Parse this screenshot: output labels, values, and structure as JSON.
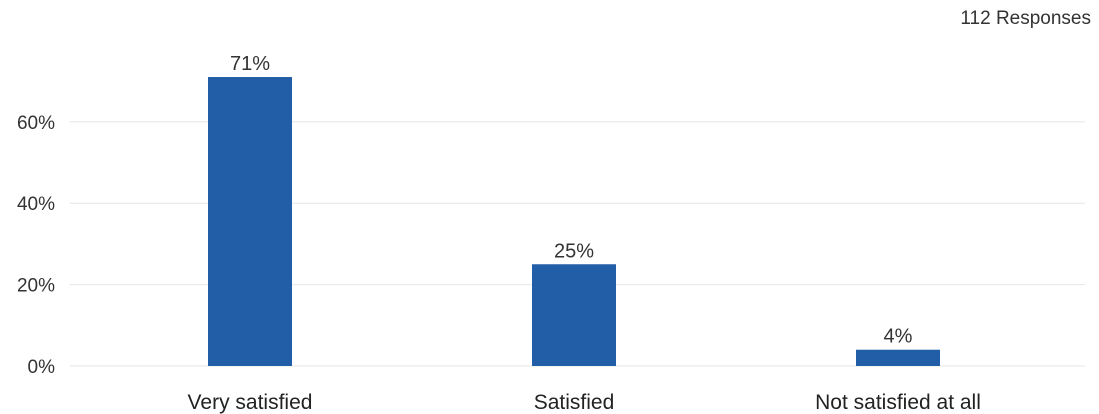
{
  "responses_label": "112 Responses",
  "chart_data": {
    "type": "bar",
    "categories": [
      "Very satisfied",
      "Satisfied",
      "Not satisfied at all"
    ],
    "values": [
      71,
      25,
      4
    ],
    "value_labels": [
      "71%",
      "25%",
      "4%"
    ],
    "ylim": [
      0,
      80
    ],
    "yticks": [
      0,
      20,
      40,
      60
    ],
    "ytick_labels": [
      "0%",
      "20%",
      "40%",
      "60%"
    ],
    "grid": true,
    "bar_color": "#215ea7",
    "grid_color": "#e6e6e6",
    "title": "",
    "xlabel": "",
    "ylabel": ""
  }
}
